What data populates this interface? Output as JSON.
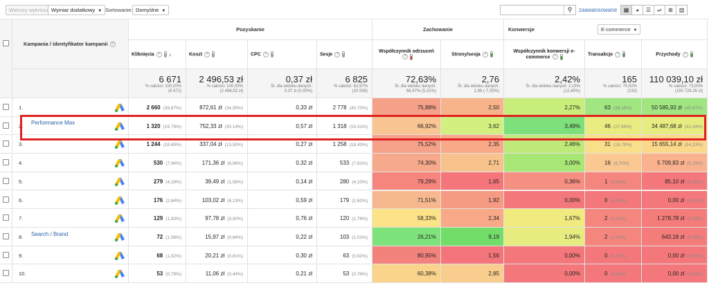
{
  "toolbar": {
    "show_chart_label": "Wierszy wykresu",
    "secondary_dimension_label": "Wymiar dodatkowy",
    "sort_label": "Sortowanie:",
    "sort_value": "Domyślne",
    "search_placeholder": "",
    "advanced_label": "zaawansowane",
    "view_icons": [
      "grid-icon",
      "pie-icon",
      "bar-icon",
      "compare-icon",
      "pivot-icon",
      "columns-icon"
    ]
  },
  "headers": {
    "campaign": "Kampania / identyfikator kampanii",
    "group_acquisition": "Pozyskanie",
    "group_behavior": "Zachowanie",
    "group_conversions": "Konwersje",
    "conversion_select": "E-commerce",
    "columns": [
      "Kliknięcia",
      "Koszt",
      "CPC",
      "Sesje",
      "Współczynnik odrzuceń",
      "Strony/sesja",
      "Współczynnik konwersji e-commerce",
      "Transakcje",
      "Przychody"
    ]
  },
  "totals": [
    {
      "big": "6 671",
      "small": "% całości: 100,00%\n(6 671)"
    },
    {
      "big": "2 496,53 zł",
      "small": "% całości: 100,00%\n(2 496,53 zł)"
    },
    {
      "big": "0,37 zł",
      "small": "Śr. dla widoku danych:\n0,37 zł (0,00%)"
    },
    {
      "big": "6 825",
      "small": "% całości: 62,97%\n(10 838)"
    },
    {
      "big": "72,63%",
      "small": "Śr. dla widoku danych:\n68,97% (5,31%)"
    },
    {
      "big": "2,76",
      "small": "Śr. dla widoku danych:\n2,98 (-7,33%)"
    },
    {
      "big": "2,42%",
      "small": "Śr. dla widoku danych: 2,15%\n(12,45%)"
    },
    {
      "big": "165",
      "small": "% całości: 70,82%\n(233)"
    },
    {
      "big": "110 039,10 zł",
      "small": "% całości: 73,00%\n(150 728,35 zł)"
    }
  ],
  "rows": [
    {
      "n": "1.",
      "name": "",
      "clicks": "2 660",
      "clicks_pct": "(39,87%)",
      "cost": "872,61 zł",
      "cost_pct": "(34,95%)",
      "cpc": "0,33 zł",
      "sessions": "2 778",
      "sessions_pct": "(40,70%)",
      "bounce": "75,88%",
      "pps": "2,50",
      "conv": "2,27%",
      "trans": "63",
      "trans_pct": "(38,18%)",
      "rev": "50 585,93 zł",
      "rev_pct": "(45,97%)"
    },
    {
      "n": "2.",
      "name": "Performance Max",
      "clicks": "1 320",
      "clicks_pct": "(19,79%)",
      "cost": "752,33 zł",
      "cost_pct": "(30,14%)",
      "cpc": "0,57 zł",
      "sessions": "1 318",
      "sessions_pct": "(19,31%)",
      "bounce": "66,92%",
      "pps": "3,62",
      "conv": "3,49%",
      "trans": "46",
      "trans_pct": "(27,88%)",
      "rev": "34 487,68 zł",
      "rev_pct": "(31,34%)"
    },
    {
      "n": "3.",
      "name": "",
      "clicks": "1 244",
      "clicks_pct": "(18,65%)",
      "cost": "337,04 zł",
      "cost_pct": "(13,50%)",
      "cpc": "0,27 zł",
      "sessions": "1 258",
      "sessions_pct": "(18,43%)",
      "bounce": "75,52%",
      "pps": "2,35",
      "conv": "2,46%",
      "trans": "31",
      "trans_pct": "(18,79%)",
      "rev": "15 655,14 zł",
      "rev_pct": "(14,23%)"
    },
    {
      "n": "4.",
      "name": "",
      "clicks": "530",
      "clicks_pct": "(7,94%)",
      "cost": "171,36 zł",
      "cost_pct": "(6,86%)",
      "cpc": "0,32 zł",
      "sessions": "533",
      "sessions_pct": "(7,81%)",
      "bounce": "74,30%",
      "pps": "2,71",
      "conv": "3,00%",
      "trans": "16",
      "trans_pct": "(9,70%)",
      "rev": "5 709,83 zł",
      "rev_pct": "(5,19%)"
    },
    {
      "n": "5.",
      "name": "",
      "clicks": "279",
      "clicks_pct": "(4,18%)",
      "cost": "39,49 zł",
      "cost_pct": "(1,58%)",
      "cpc": "0,14 zł",
      "sessions": "280",
      "sessions_pct": "(4,10%)",
      "bounce": "79,29%",
      "pps": "1,65",
      "conv": "0,36%",
      "trans": "1",
      "trans_pct": "(0,61%)",
      "rev": "85,10 zł",
      "rev_pct": "(0,08%)"
    },
    {
      "n": "6.",
      "name": "",
      "clicks": "176",
      "clicks_pct": "(2,64%)",
      "cost": "103,02 zł",
      "cost_pct": "(4,13%)",
      "cpc": "0,59 zł",
      "sessions": "179",
      "sessions_pct": "(2,62%)",
      "bounce": "71,51%",
      "pps": "1,92",
      "conv": "0,00%",
      "trans": "0",
      "trans_pct": "(0,00%)",
      "rev": "0,00 zł",
      "rev_pct": "(0,00%)"
    },
    {
      "n": "7.",
      "name": "",
      "clicks": "129",
      "clicks_pct": "(1,93%)",
      "cost": "97,78 zł",
      "cost_pct": "(3,92%)",
      "cpc": "0,76 zł",
      "sessions": "120",
      "sessions_pct": "(1,76%)",
      "bounce": "58,33%",
      "pps": "2,34",
      "conv": "1,67%",
      "trans": "2",
      "trans_pct": "(1,21%)",
      "rev": "1 278,78 zł",
      "rev_pct": "(1,16%)"
    },
    {
      "n": "8.",
      "name": "Search / Brand",
      "clicks": "72",
      "clicks_pct": "(1,08%)",
      "cost": "15,97 zł",
      "cost_pct": "(0,64%)",
      "cpc": "0,22 zł",
      "sessions": "103",
      "sessions_pct": "(1,51%)",
      "bounce": "26,21%",
      "pps": "9,19",
      "conv": "1,94%",
      "trans": "2",
      "trans_pct": "(1,21%)",
      "rev": "643,18 zł",
      "rev_pct": "(0,58%)"
    },
    {
      "n": "9.",
      "name": "",
      "clicks": "68",
      "clicks_pct": "(1,02%)",
      "cost": "20,21 zł",
      "cost_pct": "(0,81%)",
      "cpc": "0,30 zł",
      "sessions": "63",
      "sessions_pct": "(0,92%)",
      "bounce": "80,95%",
      "pps": "1,56",
      "conv": "0,00%",
      "trans": "0",
      "trans_pct": "(0,00%)",
      "rev": "0,00 zł",
      "rev_pct": "(0,00%)"
    },
    {
      "n": "10.",
      "name": "",
      "clicks": "53",
      "clicks_pct": "(0,79%)",
      "cost": "11,06 zł",
      "cost_pct": "(0,44%)",
      "cpc": "0,21 zł",
      "sessions": "53",
      "sessions_pct": "(0,78%)",
      "bounce": "60,38%",
      "pps": "2,85",
      "conv": "0,00%",
      "trans": "0",
      "trans_pct": "(0,00%)",
      "rev": "0,00 zł",
      "rev_pct": "(0,00%)"
    }
  ],
  "colors": {
    "bounce": [
      "#f6a08a",
      "#f9c593",
      "#f6a28a",
      "#f7aa8b",
      "#f5857d",
      "#f8b88f",
      "#fde387",
      "#7fe37c",
      "#f4827c",
      "#fbd48b"
    ],
    "pps": [
      "#f7b389",
      "#d2f07f",
      "#f8a987",
      "#f8c28c",
      "#f4767b",
      "#f59a83",
      "#f8a987",
      "#73dd6a",
      "#f4747b",
      "#f9cd8e"
    ],
    "conv": [
      "#c9ed7a",
      "#7ee07a",
      "#bdea78",
      "#a8e676",
      "#f58f82",
      "#f4787b",
      "#f0ea7f",
      "#e6ec80",
      "#f4787b",
      "#f4787b"
    ],
    "trans": [
      "#a1e680",
      "#e9ec80",
      "#fadf8a",
      "#fbc892",
      "#f5867e",
      "#f4787b",
      "#f5867e",
      "#f5867e",
      "#f4787b",
      "#f4787b"
    ],
    "rev": [
      "#a1e680",
      "#e6ec80",
      "#fbd98b",
      "#fab28e",
      "#f4787b",
      "#f4787b",
      "#f47c7b",
      "#f47c7b",
      "#f4787b",
      "#f4787b"
    ]
  }
}
